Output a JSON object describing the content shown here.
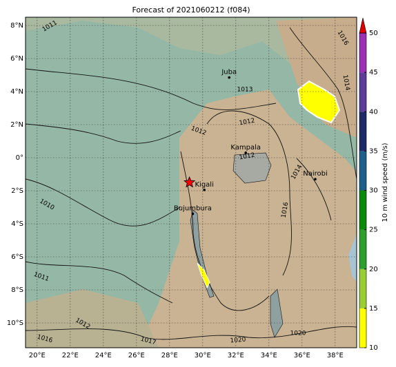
{
  "chart_data": {
    "type": "map",
    "title": "Forecast of 2021060212 (f084)",
    "xlim": [
      19.3,
      39.3
    ],
    "ylim": [
      -11.5,
      8.5
    ],
    "xticks": [
      {
        "value": 20,
        "label": "20°E"
      },
      {
        "value": 22,
        "label": "22°E"
      },
      {
        "value": 24,
        "label": "24°E"
      },
      {
        "value": 26,
        "label": "26°E"
      },
      {
        "value": 28,
        "label": "28°E"
      },
      {
        "value": 30,
        "label": "30°E"
      },
      {
        "value": 32,
        "label": "32°E"
      },
      {
        "value": 34,
        "label": "34°E"
      },
      {
        "value": 36,
        "label": "36°E"
      },
      {
        "value": 38,
        "label": "38°E"
      }
    ],
    "yticks": [
      {
        "value": 8,
        "label": "8°N"
      },
      {
        "value": 6,
        "label": "6°N"
      },
      {
        "value": 4,
        "label": "4°N"
      },
      {
        "value": 2,
        "label": "2°N"
      },
      {
        "value": 0,
        "label": "0°"
      },
      {
        "value": -2,
        "label": "2°S"
      },
      {
        "value": -4,
        "label": "4°S"
      },
      {
        "value": -6,
        "label": "6°S"
      },
      {
        "value": -8,
        "label": "8°S"
      },
      {
        "value": -10,
        "label": "10°S"
      }
    ],
    "grid": true,
    "cities": [
      {
        "name": "Juba",
        "lon": 31.6,
        "lat": 4.85
      },
      {
        "name": "Kampala",
        "lon": 32.6,
        "lat": 0.3
      },
      {
        "name": "Kigali",
        "lon": 30.1,
        "lat": -1.95
      },
      {
        "name": "Bujumbura",
        "lon": 29.4,
        "lat": -3.4
      },
      {
        "name": "Nairobi",
        "lon": 36.8,
        "lat": -1.3
      }
    ],
    "marker": {
      "lon": 29.2,
      "lat": -1.5,
      "color": "#ff0000"
    },
    "contour_labels": [
      "1011",
      "1012",
      "1012",
      "1012",
      "1010",
      "1011",
      "1012",
      "1016",
      "1017",
      "1020",
      "1020",
      "1016",
      "1014",
      "1016",
      "1013",
      "1014"
    ],
    "colorbar": {
      "label": "10 m wind speed (m/s)",
      "ticks": [
        10,
        15,
        20,
        25,
        30,
        35,
        40,
        45,
        50
      ],
      "colors": [
        "#ffff00",
        "#9acd32",
        "#2ca02c",
        "#0a8a0a",
        "#1f5f8b",
        "#1c2a66",
        "#5e3c99",
        "#9b30b5"
      ],
      "extend_color": "#e00000"
    }
  }
}
